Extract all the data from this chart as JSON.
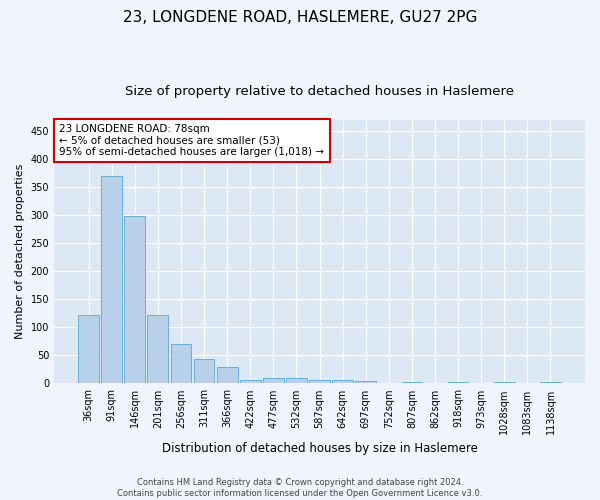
{
  "title": "23, LONGDENE ROAD, HASLEMERE, GU27 2PG",
  "subtitle": "Size of property relative to detached houses in Haslemere",
  "xlabel": "Distribution of detached houses by size in Haslemere",
  "ylabel": "Number of detached properties",
  "categories": [
    "36sqm",
    "91sqm",
    "146sqm",
    "201sqm",
    "256sqm",
    "311sqm",
    "366sqm",
    "422sqm",
    "477sqm",
    "532sqm",
    "587sqm",
    "642sqm",
    "697sqm",
    "752sqm",
    "807sqm",
    "862sqm",
    "918sqm",
    "973sqm",
    "1028sqm",
    "1083sqm",
    "1138sqm"
  ],
  "values": [
    122,
    370,
    298,
    122,
    70,
    44,
    30,
    7,
    9,
    10,
    6,
    6,
    4,
    0,
    3,
    0,
    2,
    0,
    3,
    0,
    3
  ],
  "bar_color": "#b8d0ea",
  "bar_edge_color": "#6aaed6",
  "annotation_text": "23 LONGDENE ROAD: 78sqm\n← 5% of detached houses are smaller (53)\n95% of semi-detached houses are larger (1,018) →",
  "annotation_box_color": "#ffffff",
  "annotation_box_edge_color": "#cc0000",
  "ylim": [
    0,
    470
  ],
  "yticks": [
    0,
    50,
    100,
    150,
    200,
    250,
    300,
    350,
    400,
    450
  ],
  "footer": "Contains HM Land Registry data © Crown copyright and database right 2024.\nContains public sector information licensed under the Open Government Licence v3.0.",
  "background_color": "#dde8f5",
  "fig_background_color": "#f0f4fc",
  "grid_color": "#ffffff",
  "title_fontsize": 11,
  "subtitle_fontsize": 9.5,
  "xlabel_fontsize": 8.5,
  "ylabel_fontsize": 8,
  "tick_fontsize": 7,
  "footer_fontsize": 6,
  "annotation_fontsize": 7.5
}
